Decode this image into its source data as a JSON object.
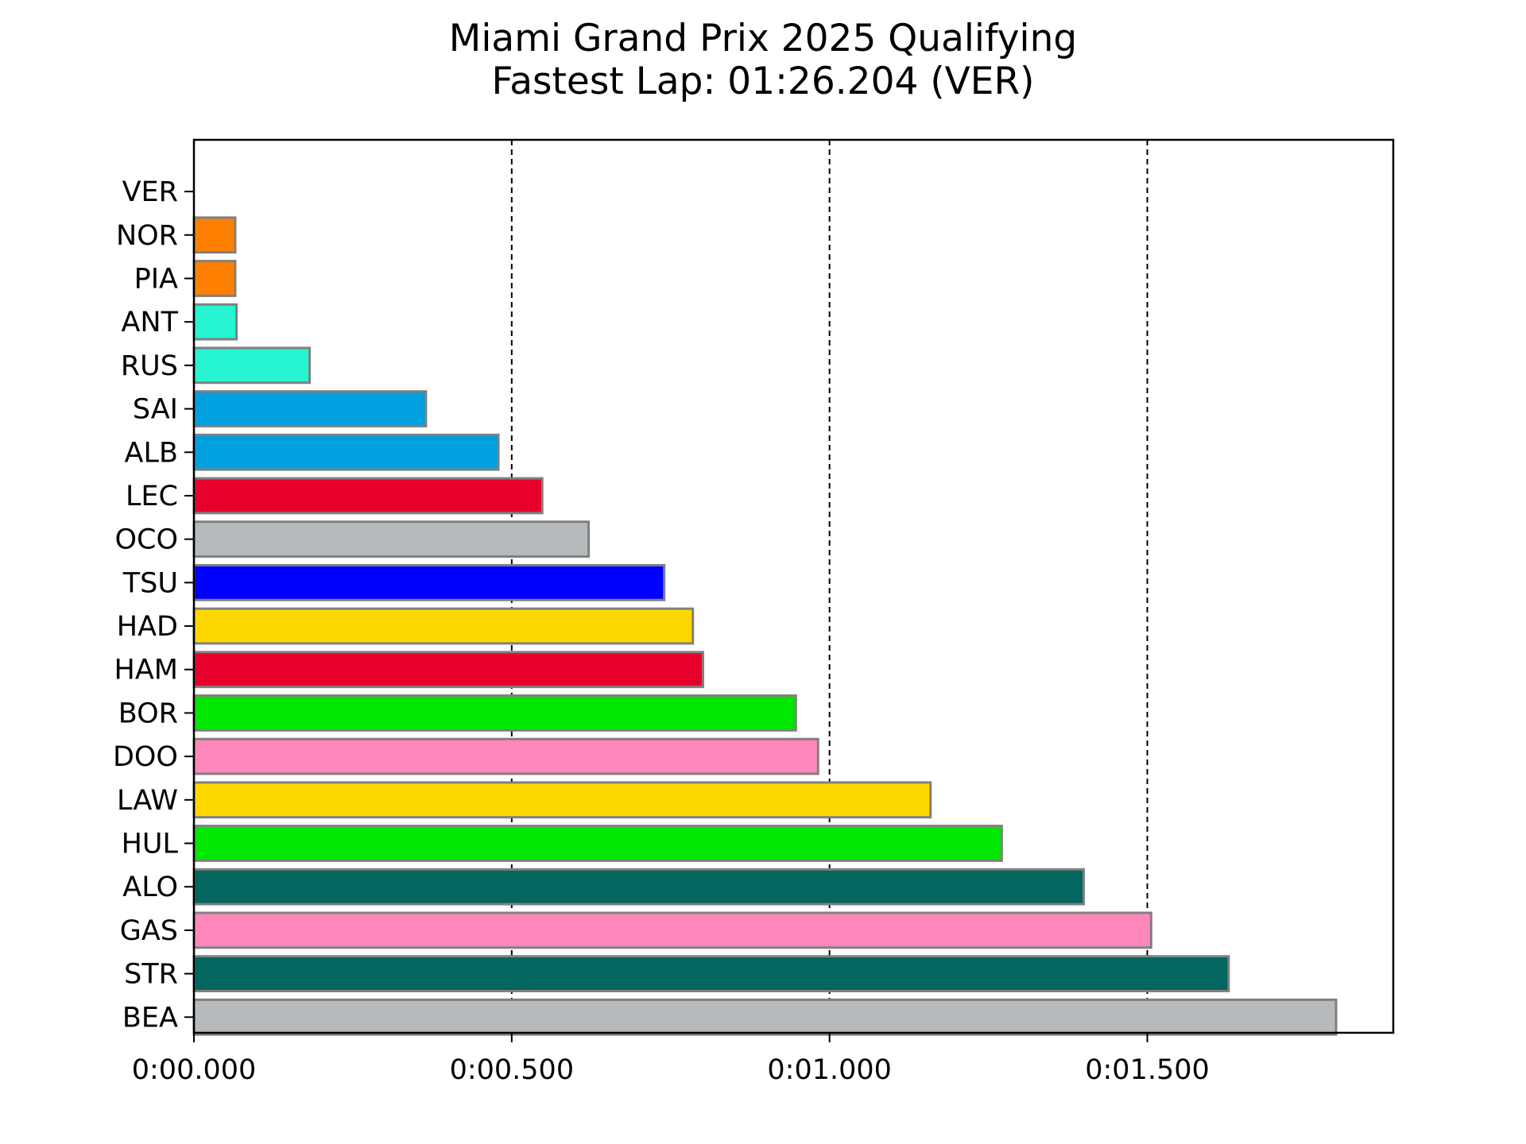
{
  "chart_data": {
    "type": "bar",
    "orientation": "horizontal",
    "title": "Miami Grand Prix 2025 Qualifying",
    "subtitle": "Fastest Lap: 01:26.204 (VER)",
    "xlabel": "",
    "ylabel": "",
    "x_unit": "seconds gap to fastest lap",
    "categories": [
      "VER",
      "NOR",
      "PIA",
      "ANT",
      "RUS",
      "SAI",
      "ALB",
      "LEC",
      "OCO",
      "TSU",
      "HAD",
      "HAM",
      "BOR",
      "DOO",
      "LAW",
      "HUL",
      "ALO",
      "GAS",
      "STR",
      "BEA"
    ],
    "values": [
      0.0,
      0.065,
      0.065,
      0.067,
      0.182,
      0.365,
      0.479,
      0.548,
      0.621,
      0.74,
      0.785,
      0.801,
      0.947,
      0.982,
      1.159,
      1.271,
      1.4,
      1.506,
      1.628,
      1.797
    ],
    "colors": [
      "#3671C6",
      "#FF8000",
      "#FF8000",
      "#27F4D2",
      "#27F4D2",
      "#00A0DE",
      "#00A0DE",
      "#E8002D",
      "#B6BABD",
      "#0000FF",
      "#FFD700",
      "#E8002D",
      "#00E701",
      "#FF87BC",
      "#FFD700",
      "#00E701",
      "#03665F",
      "#FF87BC",
      "#03665F",
      "#B6BABD"
    ],
    "bar_edge_color": "#808080",
    "xlim": [
      0,
      1.887
    ],
    "xticks": [
      0,
      0.5,
      1.0,
      1.5
    ],
    "xtick_labels": [
      "0:00.000",
      "0:00.500",
      "0:01.000",
      "0:01.500"
    ],
    "grid": "x-major, dashed, black",
    "legend": "none"
  }
}
